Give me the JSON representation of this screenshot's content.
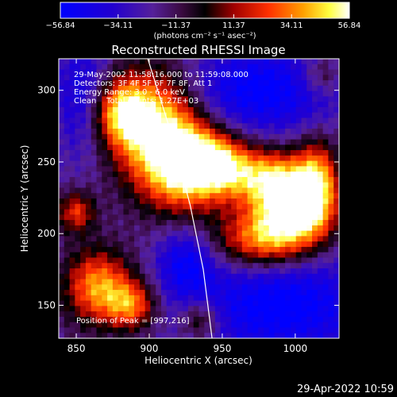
{
  "chart_data": {
    "type": "heatmap",
    "title": "Reconstructed RHESSI Image",
    "xlabel": "Heliocentric X (arcsec)",
    "ylabel": "Heliocentric Y (arcsec)",
    "xlim": [
      838,
      1030
    ],
    "ylim": [
      127,
      322
    ],
    "xticks": [
      850,
      900,
      950,
      1000
    ],
    "yticks": [
      150,
      200,
      250,
      300
    ],
    "colorbar": {
      "ticks": [
        "−56.84",
        "−34.11",
        "−11.37",
        "11.37",
        "34.11",
        "56.84"
      ],
      "range": [
        -56.84,
        56.84
      ],
      "unit_label": "(photons cm⁻² s⁻¹ asec⁻²)",
      "colormap": "blue-purple-red-yellow-white"
    },
    "info_lines": [
      "29-May-2002 11:58:16.000 to 11:59:08.000",
      "Detectors: 3F 4F 5F 6F 7F 8F, Att 1",
      "Energy Range: 3.0 - 6.0 keV",
      "Clean    Total counts: 1.27E+03"
    ],
    "peak_label": "Position of Peak = [997,216]",
    "peak": [
      997,
      216
    ],
    "limb_curve": [
      [
        899,
        322
      ],
      [
        915,
        270
      ],
      [
        928,
        220
      ],
      [
        937,
        175
      ],
      [
        943,
        127
      ]
    ],
    "sources": [
      {
        "x": 905,
        "y": 275,
        "intensity": 50,
        "sx": 22,
        "sy": 28
      },
      {
        "x": 880,
        "y": 285,
        "intensity": 35,
        "sx": 14,
        "sy": 16
      },
      {
        "x": 925,
        "y": 245,
        "intensity": 40,
        "sx": 20,
        "sy": 22
      },
      {
        "x": 945,
        "y": 250,
        "intensity": 30,
        "sx": 16,
        "sy": 14
      },
      {
        "x": 997,
        "y": 216,
        "intensity": 56.84,
        "sx": 18,
        "sy": 18
      },
      {
        "x": 980,
        "y": 240,
        "intensity": 34,
        "sx": 22,
        "sy": 14
      },
      {
        "x": 975,
        "y": 195,
        "intensity": 30,
        "sx": 22,
        "sy": 14
      },
      {
        "x": 1015,
        "y": 235,
        "intensity": 30,
        "sx": 10,
        "sy": 22
      },
      {
        "x": 865,
        "y": 163,
        "intensity": 38,
        "sx": 16,
        "sy": 18
      },
      {
        "x": 888,
        "y": 150,
        "intensity": 28,
        "sx": 12,
        "sy": 12
      },
      {
        "x": 850,
        "y": 215,
        "intensity": 22,
        "sx": 9,
        "sy": 10
      },
      {
        "x": 935,
        "y": 140,
        "intensity": 14,
        "sx": 10,
        "sy": 10
      },
      {
        "x": 1018,
        "y": 310,
        "intensity": 6,
        "sx": 10,
        "sy": 10
      }
    ],
    "negative_regions": [
      {
        "x": 975,
        "y": 300,
        "intensity": -40,
        "sx": 40,
        "sy": 22
      },
      {
        "x": 990,
        "y": 150,
        "intensity": -42,
        "sx": 45,
        "sy": 25
      },
      {
        "x": 855,
        "y": 295,
        "intensity": -30,
        "sx": 14,
        "sy": 30
      },
      {
        "x": 925,
        "y": 180,
        "intensity": -32,
        "sx": 14,
        "sy": 18
      }
    ]
  },
  "timestamp": "29-Apr-2022 10:59"
}
